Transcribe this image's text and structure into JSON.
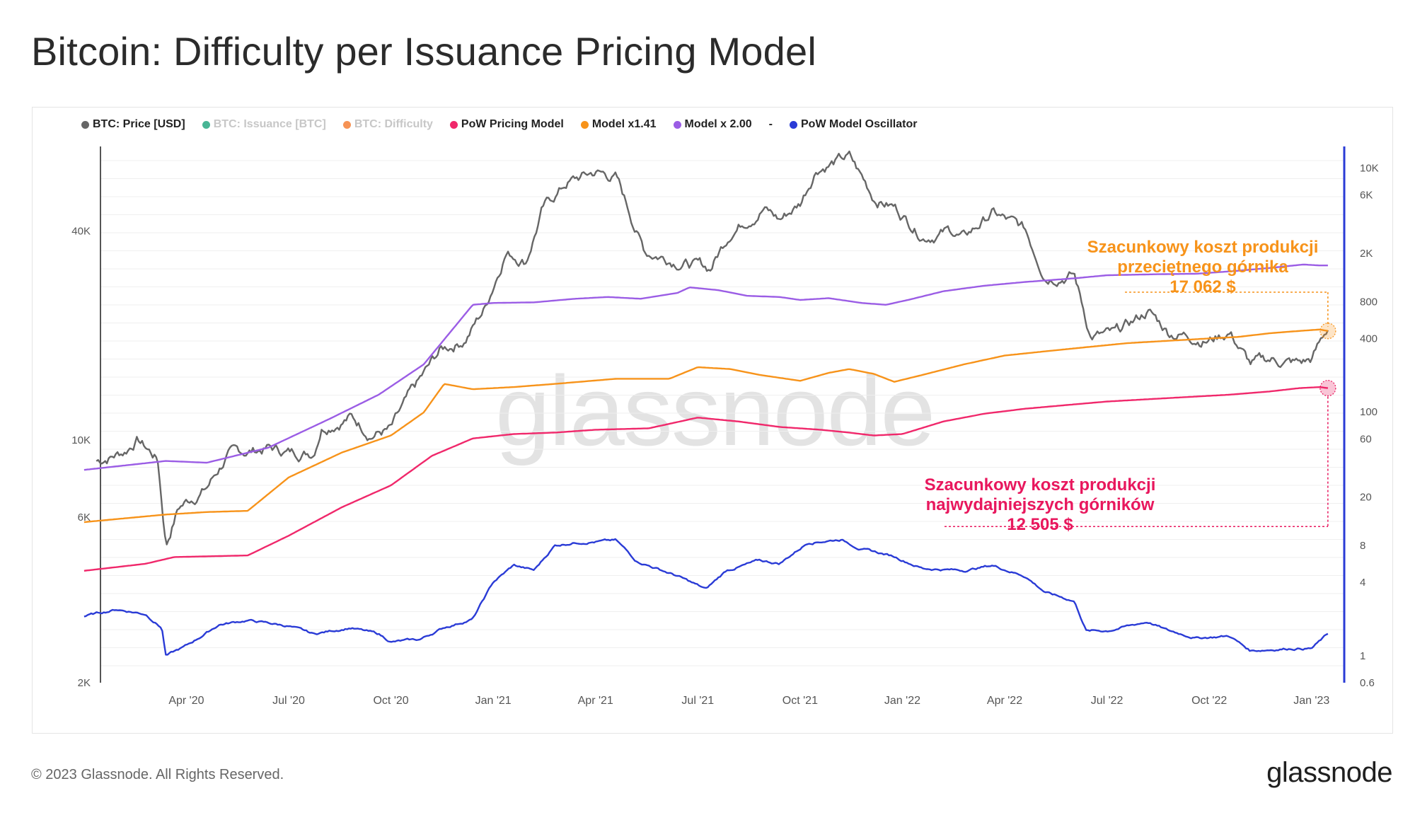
{
  "title": "Bitcoin: Difficulty per Issuance Pricing Model",
  "legend": [
    {
      "label": "BTC: Price [USD]",
      "color": "#666666",
      "muted": false
    },
    {
      "label": "BTC: Issuance [BTC]",
      "color": "#1aa37a",
      "muted": true
    },
    {
      "label": "BTC: Difficulty",
      "color": "#f4782a",
      "muted": true
    },
    {
      "label": "PoW Pricing Model",
      "color": "#f0286b",
      "muted": false
    },
    {
      "label": "Model x1.41",
      "color": "#f7931a",
      "muted": false
    },
    {
      "label": "Model x 2.00",
      "color": "#9b5de5",
      "muted": false
    },
    {
      "label": "-",
      "color": "",
      "muted": false
    },
    {
      "label": "PoW Model Oscillator",
      "color": "#2a3bd6",
      "muted": false
    }
  ],
  "annotations": {
    "avg_miner": {
      "line1": "Szacunkowy koszt produkcji",
      "line2": "przeciętnego górnika",
      "value": "17 062 $",
      "color": "#f7931a"
    },
    "efficient_miner": {
      "line1": "Szacunkowy koszt produkcji",
      "line2": "najwydajniejszych górników",
      "value": "12 505 $",
      "color": "#e8175d"
    }
  },
  "watermark": "glassnode",
  "footer": {
    "copyright": "© 2023 Glassnode. All Rights Reserved.",
    "logo": "glassnode"
  },
  "chart_data": {
    "type": "line",
    "title": "Bitcoin: Difficulty per Issuance Pricing Model",
    "x_range": [
      "2020-01-15",
      "2023-01-15"
    ],
    "x_ticks": [
      {
        "label": "Apr '20",
        "t": 2020.25
      },
      {
        "label": "Jul '20",
        "t": 2020.5
      },
      {
        "label": "Oct '20",
        "t": 2020.75
      },
      {
        "label": "Jan '21",
        "t": 2021.0
      },
      {
        "label": "Apr '21",
        "t": 2021.25
      },
      {
        "label": "Jul '21",
        "t": 2021.5
      },
      {
        "label": "Oct '21",
        "t": 2021.75
      },
      {
        "label": "Jan '22",
        "t": 2022.0
      },
      {
        "label": "Apr '22",
        "t": 2022.25
      },
      {
        "label": "Jul '22",
        "t": 2022.5
      },
      {
        "label": "Oct '22",
        "t": 2022.75
      },
      {
        "label": "Jan '23",
        "t": 2023.0
      }
    ],
    "left_axis": {
      "scale": "log",
      "range": [
        2000,
        70000
      ],
      "ticks": [
        {
          "label": "2K",
          "v": 2000
        },
        {
          "label": "6K",
          "v": 6000
        },
        {
          "label": "10K",
          "v": 10000
        },
        {
          "label": "40K",
          "v": 40000
        }
      ]
    },
    "right_axis": {
      "scale": "log",
      "range": [
        0.6,
        15000
      ],
      "ticks": [
        {
          "label": "0.6",
          "v": 0.6
        },
        {
          "label": "1",
          "v": 1
        },
        {
          "label": "4",
          "v": 4
        },
        {
          "label": "8",
          "v": 8
        },
        {
          "label": "20",
          "v": 20
        },
        {
          "label": "60",
          "v": 60
        },
        {
          "label": "100",
          "v": 100
        },
        {
          "label": "400",
          "v": 400
        },
        {
          "label": "800",
          "v": 800
        },
        {
          "label": "2K",
          "v": 2000
        },
        {
          "label": "6K",
          "v": 6000
        },
        {
          "label": "10K",
          "v": 10000
        }
      ]
    },
    "series": [
      {
        "name": "BTC: Price [USD]",
        "axis": "left",
        "color": "#666666",
        "noise": 0.035,
        "points": [
          [
            2020.03,
            8700
          ],
          [
            2020.1,
            9300
          ],
          [
            2020.13,
            10100
          ],
          [
            2020.18,
            8800
          ],
          [
            2020.2,
            5000
          ],
          [
            2020.23,
            6400
          ],
          [
            2020.3,
            7300
          ],
          [
            2020.35,
            9000
          ],
          [
            2020.45,
            9500
          ],
          [
            2020.5,
            9200
          ],
          [
            2020.56,
            9250
          ],
          [
            2020.58,
            11000
          ],
          [
            2020.65,
            11700
          ],
          [
            2020.7,
            10500
          ],
          [
            2020.75,
            10700
          ],
          [
            2020.8,
            13500
          ],
          [
            2020.87,
            18000
          ],
          [
            2020.93,
            19500
          ],
          [
            2020.98,
            24000
          ],
          [
            2021.03,
            35000
          ],
          [
            2021.08,
            33000
          ],
          [
            2021.12,
            46000
          ],
          [
            2021.18,
            55000
          ],
          [
            2021.25,
            59000
          ],
          [
            2021.3,
            57000
          ],
          [
            2021.37,
            35000
          ],
          [
            2021.45,
            33000
          ],
          [
            2021.53,
            31000
          ],
          [
            2021.58,
            40000
          ],
          [
            2021.66,
            47000
          ],
          [
            2021.7,
            43000
          ],
          [
            2021.75,
            48000
          ],
          [
            2021.79,
            61000
          ],
          [
            2021.87,
            65000
          ],
          [
            2021.93,
            50000
          ],
          [
            2021.98,
            47000
          ],
          [
            2022.05,
            39000
          ],
          [
            2022.12,
            40000
          ],
          [
            2022.15,
            38000
          ],
          [
            2022.22,
            45000
          ],
          [
            2022.3,
            40000
          ],
          [
            2022.35,
            30000
          ],
          [
            2022.42,
            30000
          ],
          [
            2022.46,
            20000
          ],
          [
            2022.52,
            20000
          ],
          [
            2022.6,
            23500
          ],
          [
            2022.65,
            20500
          ],
          [
            2022.75,
            19500
          ],
          [
            2022.8,
            20500
          ],
          [
            2022.85,
            16500
          ],
          [
            2022.9,
            17000
          ],
          [
            2022.97,
            16600
          ],
          [
            2023.0,
            17000
          ],
          [
            2023.04,
            21000
          ]
        ]
      },
      {
        "name": "Model x 2.00",
        "axis": "left",
        "color": "#9b5de5",
        "noise": 0,
        "points": [
          [
            2020.0,
            8200
          ],
          [
            2020.2,
            8700
          ],
          [
            2020.3,
            8600
          ],
          [
            2020.45,
            9500
          ],
          [
            2020.6,
            11500
          ],
          [
            2020.72,
            13500
          ],
          [
            2020.83,
            16500
          ],
          [
            2020.95,
            24500
          ],
          [
            2021.0,
            24800
          ],
          [
            2021.1,
            24900
          ],
          [
            2021.2,
            25500
          ],
          [
            2021.28,
            25800
          ],
          [
            2021.36,
            25500
          ],
          [
            2021.45,
            26500
          ],
          [
            2021.48,
            27500
          ],
          [
            2021.55,
            27000
          ],
          [
            2021.62,
            26000
          ],
          [
            2021.7,
            25800
          ],
          [
            2021.75,
            25300
          ],
          [
            2021.82,
            25600
          ],
          [
            2021.9,
            24800
          ],
          [
            2021.96,
            24500
          ],
          [
            2022.02,
            25400
          ],
          [
            2022.1,
            26800
          ],
          [
            2022.2,
            27800
          ],
          [
            2022.3,
            28500
          ],
          [
            2022.42,
            29200
          ],
          [
            2022.5,
            29800
          ],
          [
            2022.62,
            30000
          ],
          [
            2022.72,
            30100
          ],
          [
            2022.82,
            30700
          ],
          [
            2022.9,
            31300
          ],
          [
            2022.98,
            32000
          ],
          [
            2023.02,
            31800
          ],
          [
            2023.04,
            31800
          ]
        ]
      },
      {
        "name": "Model x1.41",
        "axis": "left",
        "color": "#f7931a",
        "noise": 0,
        "points": [
          [
            2020.0,
            5800
          ],
          [
            2020.2,
            6100
          ],
          [
            2020.3,
            6200
          ],
          [
            2020.4,
            6250
          ],
          [
            2020.5,
            7800
          ],
          [
            2020.63,
            9200
          ],
          [
            2020.75,
            10300
          ],
          [
            2020.83,
            12000
          ],
          [
            2020.88,
            14500
          ],
          [
            2020.95,
            14000
          ],
          [
            2021.05,
            14200
          ],
          [
            2021.15,
            14500
          ],
          [
            2021.3,
            15000
          ],
          [
            2021.43,
            15000
          ],
          [
            2021.5,
            16200
          ],
          [
            2021.58,
            16000
          ],
          [
            2021.65,
            15400
          ],
          [
            2021.75,
            14800
          ],
          [
            2021.82,
            15600
          ],
          [
            2021.87,
            16000
          ],
          [
            2021.93,
            15500
          ],
          [
            2021.98,
            14700
          ],
          [
            2022.05,
            15400
          ],
          [
            2022.15,
            16500
          ],
          [
            2022.25,
            17500
          ],
          [
            2022.35,
            18000
          ],
          [
            2022.45,
            18500
          ],
          [
            2022.55,
            19000
          ],
          [
            2022.65,
            19300
          ],
          [
            2022.75,
            19600
          ],
          [
            2022.82,
            19800
          ],
          [
            2022.9,
            20300
          ],
          [
            2022.97,
            20600
          ],
          [
            2023.02,
            20800
          ],
          [
            2023.04,
            20600
          ]
        ]
      },
      {
        "name": "PoW Pricing Model",
        "axis": "left",
        "color": "#f0286b",
        "noise": 0,
        "points": [
          [
            2020.0,
            4200
          ],
          [
            2020.15,
            4400
          ],
          [
            2020.22,
            4600
          ],
          [
            2020.4,
            4650
          ],
          [
            2020.5,
            5300
          ],
          [
            2020.63,
            6400
          ],
          [
            2020.75,
            7400
          ],
          [
            2020.85,
            9000
          ],
          [
            2020.95,
            10100
          ],
          [
            2021.05,
            10400
          ],
          [
            2021.15,
            10500
          ],
          [
            2021.25,
            10700
          ],
          [
            2021.38,
            10800
          ],
          [
            2021.5,
            11600
          ],
          [
            2021.6,
            11300
          ],
          [
            2021.7,
            10900
          ],
          [
            2021.8,
            10700
          ],
          [
            2021.87,
            10500
          ],
          [
            2021.93,
            10300
          ],
          [
            2022.0,
            10400
          ],
          [
            2022.1,
            11300
          ],
          [
            2022.2,
            11900
          ],
          [
            2022.3,
            12300
          ],
          [
            2022.4,
            12600
          ],
          [
            2022.5,
            12900
          ],
          [
            2022.6,
            13100
          ],
          [
            2022.7,
            13300
          ],
          [
            2022.8,
            13500
          ],
          [
            2022.9,
            13800
          ],
          [
            2022.97,
            14100
          ],
          [
            2023.02,
            14200
          ],
          [
            2023.04,
            14100
          ]
        ]
      },
      {
        "name": "PoW Model Oscillator",
        "axis": "right",
        "color": "#2a3bd6",
        "noise": 0.02,
        "points": [
          [
            2020.0,
            2.1
          ],
          [
            2020.08,
            2.4
          ],
          [
            2020.15,
            2.2
          ],
          [
            2020.19,
            1.7
          ],
          [
            2020.2,
            1.0
          ],
          [
            2020.25,
            1.2
          ],
          [
            2020.33,
            1.8
          ],
          [
            2020.4,
            1.95
          ],
          [
            2020.5,
            1.75
          ],
          [
            2020.56,
            1.5
          ],
          [
            2020.65,
            1.7
          ],
          [
            2020.72,
            1.5
          ],
          [
            2020.75,
            1.3
          ],
          [
            2020.82,
            1.35
          ],
          [
            2020.88,
            1.7
          ],
          [
            2020.95,
            2.0
          ],
          [
            2021.0,
            4.0
          ],
          [
            2021.05,
            5.5
          ],
          [
            2021.1,
            5.0
          ],
          [
            2021.15,
            8.0
          ],
          [
            2021.2,
            8.5
          ],
          [
            2021.3,
            8.8
          ],
          [
            2021.35,
            6.0
          ],
          [
            2021.45,
            4.5
          ],
          [
            2021.52,
            3.5
          ],
          [
            2021.57,
            5.0
          ],
          [
            2021.65,
            6.0
          ],
          [
            2021.7,
            5.7
          ],
          [
            2021.77,
            8.5
          ],
          [
            2021.85,
            9.0
          ],
          [
            2021.9,
            7.5
          ],
          [
            2021.98,
            6.5
          ],
          [
            2022.05,
            5.2
          ],
          [
            2022.15,
            5.0
          ],
          [
            2022.22,
            5.5
          ],
          [
            2022.3,
            4.5
          ],
          [
            2022.35,
            3.3
          ],
          [
            2022.42,
            2.8
          ],
          [
            2022.45,
            1.6
          ],
          [
            2022.5,
            1.6
          ],
          [
            2022.6,
            1.9
          ],
          [
            2022.65,
            1.6
          ],
          [
            2022.72,
            1.4
          ],
          [
            2022.8,
            1.45
          ],
          [
            2022.85,
            1.1
          ],
          [
            2022.95,
            1.15
          ],
          [
            2023.0,
            1.15
          ],
          [
            2023.04,
            1.5
          ]
        ]
      }
    ],
    "guides": {
      "avg_miner_level": 17062,
      "efficient_miner_level": 12505
    }
  }
}
